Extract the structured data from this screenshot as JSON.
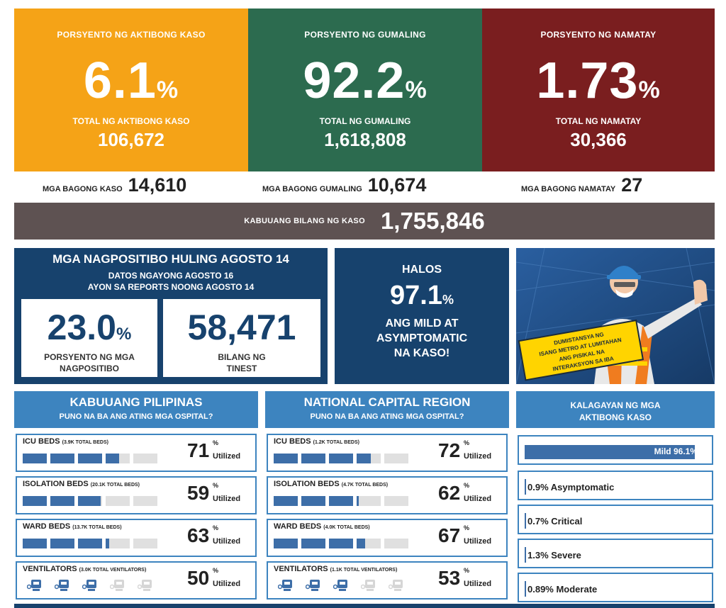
{
  "top_cards": {
    "active": {
      "pct_label": "PORSYENTO NG AKTIBONG KASO",
      "pct_value": "6.1",
      "pct_sign": "%",
      "total_label": "TOTAL NG AKTIBONG KASO",
      "total_value": "106,672",
      "color": "#f5a317"
    },
    "recovered": {
      "pct_label": "PORSYENTO NG GUMALING",
      "pct_value": "92.2",
      "pct_sign": "%",
      "total_label": "TOTAL NG GUMALING",
      "total_value": "1,618,808",
      "color": "#2c6b4f"
    },
    "deaths": {
      "pct_label": "PORSYENTO NG NAMATAY",
      "pct_value": "1.73",
      "pct_sign": "%",
      "total_label": "TOTAL NG NAMATAY",
      "total_value": "30,366",
      "color": "#7a1e1f"
    }
  },
  "new_counts": {
    "cases": {
      "label": "MGA BAGONG KASO",
      "value": "14,610"
    },
    "recovered": {
      "label": "MGA BAGONG GUMALING",
      "value": "10,674"
    },
    "deaths": {
      "label": "MGA BAGONG NAMATAY",
      "value": "27"
    }
  },
  "total_cases": {
    "label": "KABUUANG BILANG NG KASO",
    "value": "1,755,846"
  },
  "positivity": {
    "title": "MGA NAGPOSITIBO HULING AGOSTO 14",
    "sub1": "DATOS NGAYONG AGOSTO 16",
    "sub2": "AYON SA REPORTS NOONG AGOSTO 14",
    "rate_value": "23.0",
    "rate_sign": "%",
    "rate_label1": "PORSYENTO NG MGA",
    "rate_label2": "NAGPOSITIBO",
    "tested_value": "58,471",
    "tested_label1": "BILANG NG",
    "tested_label2": "TINEST"
  },
  "halos": {
    "l1": "HALOS",
    "value": "97.1",
    "sign": "%",
    "l2": "ANG MILD AT",
    "l3": "ASYMPTOMATIC",
    "l4": "NA KASO!"
  },
  "illustration": {
    "sign_l1": "DUMISTANSYA NG",
    "sign_l2": "ISANG METRO AT LUMITAHAN",
    "sign_l3": "ANG PISIKAL NA",
    "sign_l4": "INTERAKSYON SA IBA"
  },
  "hospital_panels": [
    {
      "title": "KABUUANG PILIPINAS",
      "subtitle": "PUNO NA BA ANG ATING MGA OSPITAL?",
      "rows": [
        {
          "label": "ICU BEDS",
          "detail": "(3.9K TOTAL BEDS)",
          "value": "71",
          "sign": "%",
          "unit": "Utilized",
          "fraction": 0.71
        },
        {
          "label": "ISOLATION BEDS",
          "detail": "(20.1K TOTAL BEDS)",
          "value": "59",
          "sign": "%",
          "unit": "Utilized",
          "fraction": 0.59
        },
        {
          "label": "WARD BEDS",
          "detail": "(13.7K TOTAL BEDS)",
          "value": "63",
          "sign": "%",
          "unit": "Utilized",
          "fraction": 0.63
        },
        {
          "label": "VENTILATORS",
          "detail": "(3.0K TOTAL VENTILATORS)",
          "value": "50",
          "sign": "%",
          "unit": "Utilized",
          "fraction": 0.5,
          "icons": true
        }
      ]
    },
    {
      "title": "NATIONAL CAPITAL REGION",
      "subtitle": "PUNO NA BA ANG ATING MGA OSPITAL?",
      "rows": [
        {
          "label": "ICU BEDS",
          "detail": "(1.2K TOTAL BEDS)",
          "value": "72",
          "sign": "%",
          "unit": "Utilized",
          "fraction": 0.72
        },
        {
          "label": "ISOLATION BEDS",
          "detail": "(4.7K TOTAL BEDS)",
          "value": "62",
          "sign": "%",
          "unit": "Utilized",
          "fraction": 0.62
        },
        {
          "label": "WARD BEDS",
          "detail": "(4.0K TOTAL BEDS)",
          "value": "67",
          "sign": "%",
          "unit": "Utilized",
          "fraction": 0.67
        },
        {
          "label": "VENTILATORS",
          "detail": "(1.1K TOTAL VENTILATORS)",
          "value": "53",
          "sign": "%",
          "unit": "Utilized",
          "fraction": 0.53,
          "icons": true
        }
      ]
    }
  ],
  "status": {
    "title1": "KALAGAYAN NG MGA",
    "title2": "AKTIBONG KASO",
    "items": [
      {
        "label": "Mild 96.1%",
        "fraction": 0.961
      },
      {
        "label": "0.9% Asymptomatic",
        "fraction": 0.009
      },
      {
        "label": "0.7% Critical",
        "fraction": 0.007
      },
      {
        "label": "1.3% Severe",
        "fraction": 0.013
      },
      {
        "label": "0.89% Moderate",
        "fraction": 0.0089
      }
    ]
  }
}
